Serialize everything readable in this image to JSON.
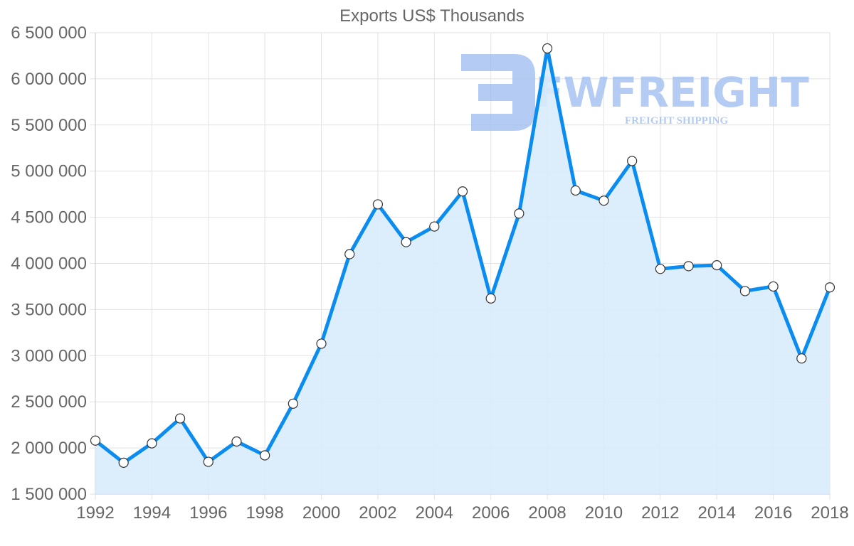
{
  "chart_data": {
    "type": "line",
    "title": "Exports US$ Thousands",
    "xlabel": "",
    "ylabel": "",
    "x": [
      1992,
      1993,
      1994,
      1995,
      1996,
      1997,
      1998,
      1999,
      2000,
      2001,
      2002,
      2003,
      2004,
      2005,
      2006,
      2007,
      2008,
      2009,
      2010,
      2011,
      2012,
      2013,
      2014,
      2015,
      2016,
      2017,
      2018
    ],
    "series": [
      {
        "name": "Exports US$ Thousands",
        "values": [
          2080000,
          1840000,
          2050000,
          2320000,
          1850000,
          2070000,
          1920000,
          2480000,
          3130000,
          4100000,
          4640000,
          4230000,
          4400000,
          4780000,
          3620000,
          4540000,
          6330000,
          4790000,
          4680000,
          5110000,
          3940000,
          3970000,
          3980000,
          3700000,
          3750000,
          2970000,
          3740000
        ],
        "color": "#0a8cf0",
        "fill": "#d8ebfb",
        "fill_area": true
      }
    ],
    "xlim": [
      1992,
      2018
    ],
    "ylim": [
      1500000,
      6500000
    ],
    "x_ticks": [
      "1992",
      "1994",
      "1996",
      "1998",
      "2000",
      "2002",
      "2004",
      "2006",
      "2008",
      "2010",
      "2012",
      "2014",
      "2016",
      "2018"
    ],
    "y_ticks": [
      "1 500 000",
      "2 000 000",
      "2 500 000",
      "3 000 000",
      "3 500 000",
      "4 000 000",
      "4 500 000",
      "5 000 000",
      "5 500 000",
      "6 000 000",
      "6 500 000"
    ],
    "grid": true,
    "legend": "none"
  },
  "watermark": {
    "brand": "FWFREIGHT",
    "tagline": "FREIGHT SHIPPING",
    "color": "#9bbcef"
  },
  "colors": {
    "line": "#0a8cf0",
    "area": "#d8ebfb",
    "grid": "#e2e2e2",
    "text": "#666666"
  }
}
